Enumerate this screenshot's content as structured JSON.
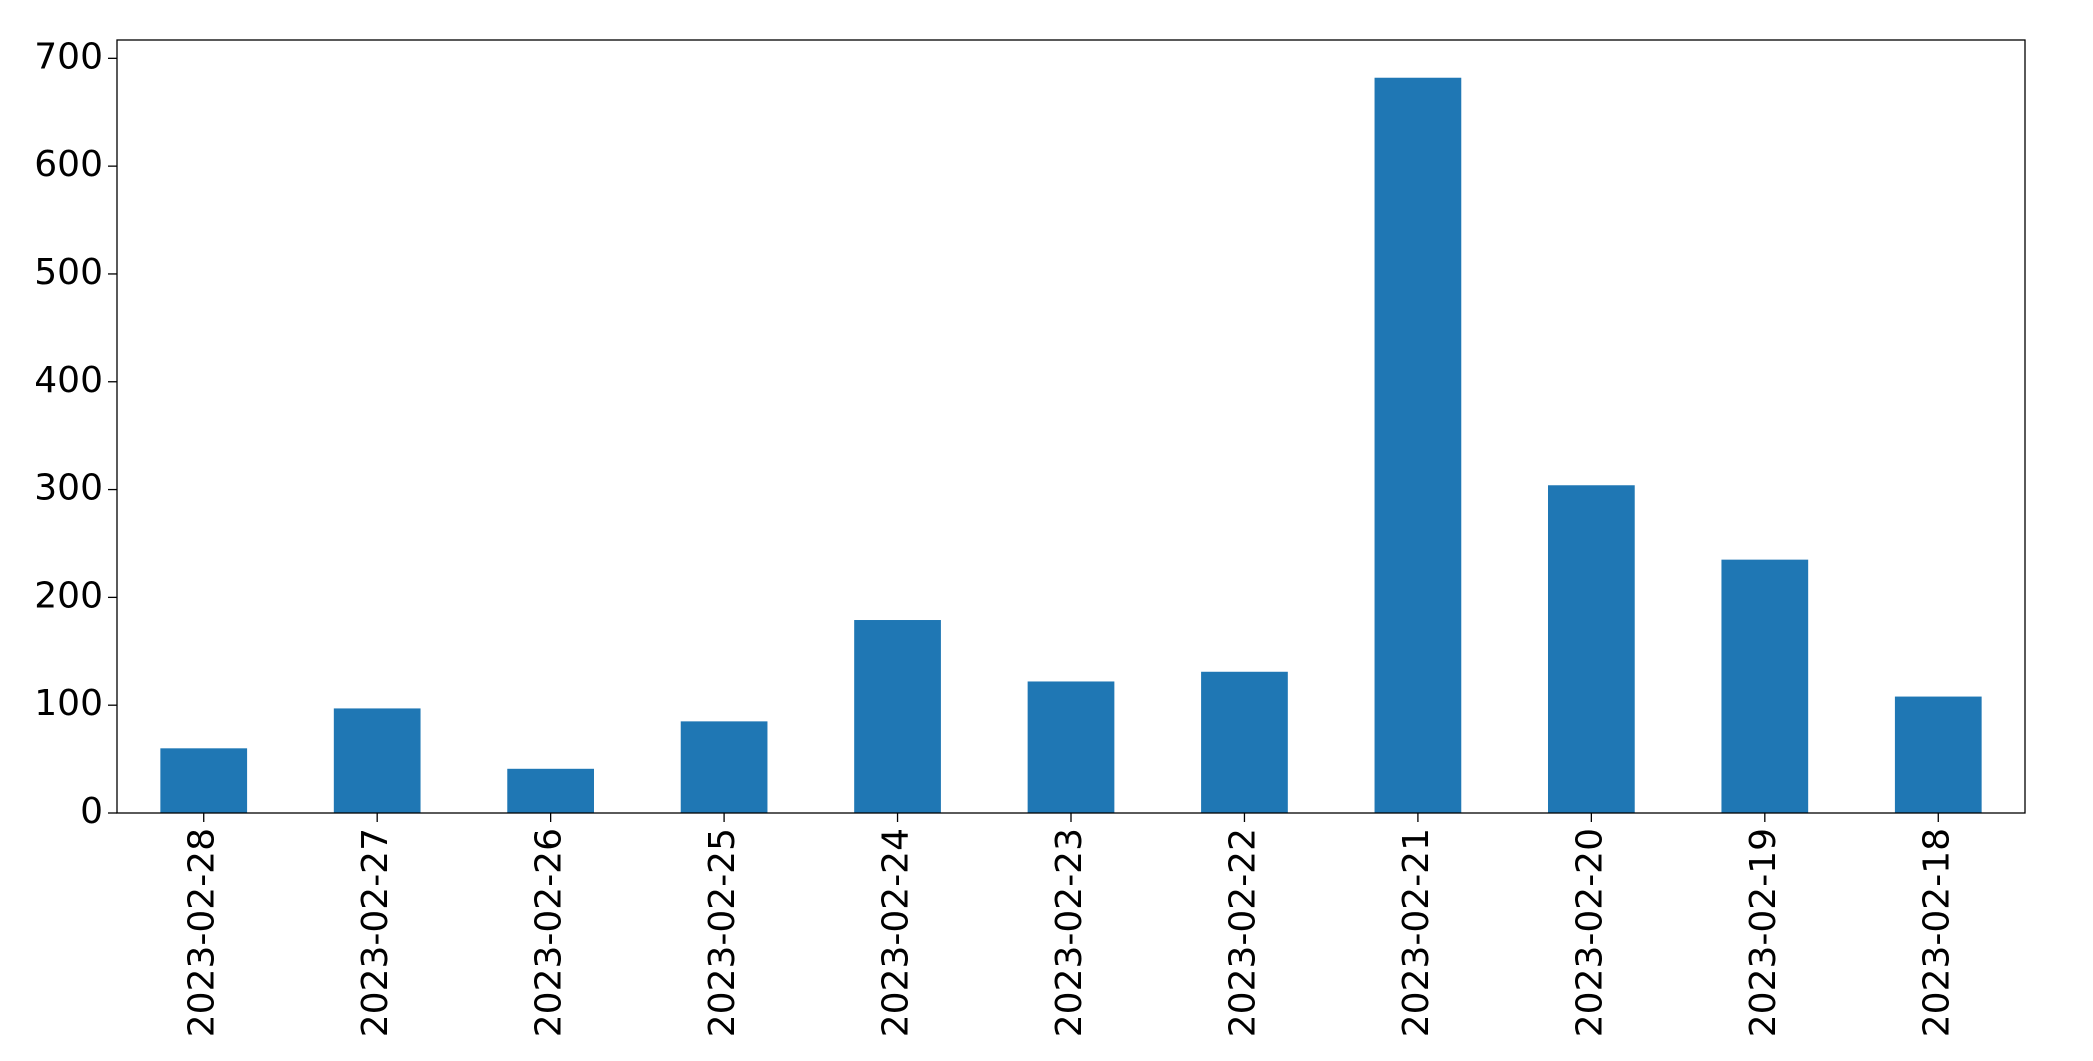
{
  "chart_data": {
    "type": "bar",
    "categories": [
      "2023-02-28",
      "2023-02-27",
      "2023-02-26",
      "2023-02-25",
      "2023-02-24",
      "2023-02-23",
      "2023-02-22",
      "2023-02-21",
      "2023-02-20",
      "2023-02-19",
      "2023-02-18"
    ],
    "values": [
      60,
      97,
      41,
      85,
      179,
      122,
      131,
      682,
      304,
      235,
      108
    ],
    "color": "#1f77b4",
    "ylim": [
      0,
      717
    ],
    "yticks": [
      0,
      100,
      200,
      300,
      400,
      500,
      600,
      700
    ],
    "grid": false
  }
}
